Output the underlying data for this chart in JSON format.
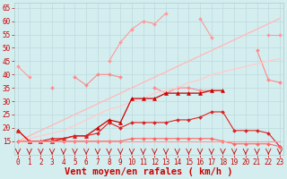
{
  "x": [
    0,
    1,
    2,
    3,
    4,
    5,
    6,
    7,
    8,
    9,
    10,
    11,
    12,
    13,
    14,
    15,
    16,
    17,
    18,
    19,
    20,
    21,
    22,
    23
  ],
  "series": [
    {
      "name": "top_line",
      "color": "#ff9999",
      "linewidth": 0.8,
      "marker": "D",
      "markersize": 2.0,
      "values": [
        43,
        39,
        null,
        null,
        null,
        null,
        null,
        null,
        45,
        52,
        57,
        60,
        59,
        63,
        null,
        null,
        61,
        54,
        null,
        null,
        null,
        null,
        55,
        55
      ]
    },
    {
      "name": "zigzag_mid",
      "color": "#ff8888",
      "linewidth": 0.8,
      "marker": "D",
      "markersize": 2.0,
      "values": [
        null,
        null,
        null,
        35,
        null,
        39,
        36,
        40,
        40,
        39,
        null,
        null,
        35,
        33,
        35,
        35,
        34,
        34,
        null,
        null,
        null,
        49,
        38,
        37
      ]
    },
    {
      "name": "straight_upper",
      "color": "#ffbbbb",
      "linewidth": 1.0,
      "marker": null,
      "markersize": 0,
      "values": [
        15,
        17,
        19,
        21,
        23,
        25,
        27,
        29,
        31,
        33,
        35,
        37,
        39,
        41,
        43,
        45,
        47,
        49,
        51,
        53,
        55,
        57,
        59,
        61
      ]
    },
    {
      "name": "straight_lower",
      "color": "#ffcccc",
      "linewidth": 1.0,
      "marker": null,
      "markersize": 0,
      "values": [
        15,
        16,
        17,
        18,
        19,
        21,
        23,
        25,
        27,
        28,
        30,
        31,
        33,
        34,
        35,
        37,
        38,
        40,
        41,
        42,
        43,
        44,
        45,
        46
      ]
    },
    {
      "name": "dark_triangle",
      "color": "#cc0000",
      "linewidth": 0.9,
      "marker": "^",
      "markersize": 3.0,
      "values": [
        19,
        15,
        15,
        15,
        16,
        17,
        17,
        20,
        23,
        22,
        31,
        31,
        31,
        33,
        33,
        33,
        33,
        34,
        34,
        null,
        null,
        null,
        null,
        null
      ]
    },
    {
      "name": "medium_red",
      "color": "#dd2222",
      "linewidth": 0.8,
      "marker": "D",
      "markersize": 2.0,
      "values": [
        19,
        15,
        15,
        16,
        16,
        17,
        17,
        18,
        22,
        20,
        22,
        22,
        22,
        22,
        23,
        23,
        24,
        26,
        26,
        19,
        19,
        19,
        18,
        13
      ]
    },
    {
      "name": "lower_light",
      "color": "#ff6666",
      "linewidth": 0.8,
      "marker": "D",
      "markersize": 2.0,
      "values": [
        15,
        15,
        15,
        15,
        15,
        15,
        15,
        15,
        15,
        15,
        16,
        16,
        16,
        16,
        16,
        16,
        16,
        16,
        15,
        14,
        14,
        14,
        14,
        13
      ]
    },
    {
      "name": "flat_bottom",
      "color": "#ff9999",
      "linewidth": 0.8,
      "marker": null,
      "markersize": 0,
      "values": [
        15,
        15,
        15,
        15,
        15,
        15,
        15,
        15,
        15,
        15,
        15,
        15,
        15,
        15,
        15,
        15,
        15,
        15,
        15,
        15,
        15,
        15,
        15,
        15
      ]
    }
  ],
  "xlim": [
    0,
    23
  ],
  "ylim": [
    10,
    67
  ],
  "yticks": [
    15,
    20,
    25,
    30,
    35,
    40,
    45,
    50,
    55,
    60,
    65
  ],
  "xticks": [
    0,
    1,
    2,
    3,
    4,
    5,
    6,
    7,
    8,
    9,
    10,
    11,
    12,
    13,
    14,
    15,
    16,
    17,
    18,
    19,
    20,
    21,
    22,
    23
  ],
  "xlabel": "Vent moyen/en rafales ( km/h )",
  "xlabel_color": "#cc0000",
  "background_color": "#d4eef0",
  "grid_color": "#c0dde0",
  "tick_color": "#cc0000",
  "tick_fontsize": 5.5,
  "xlabel_fontsize": 7.5,
  "arrow_color": "#cc0000"
}
